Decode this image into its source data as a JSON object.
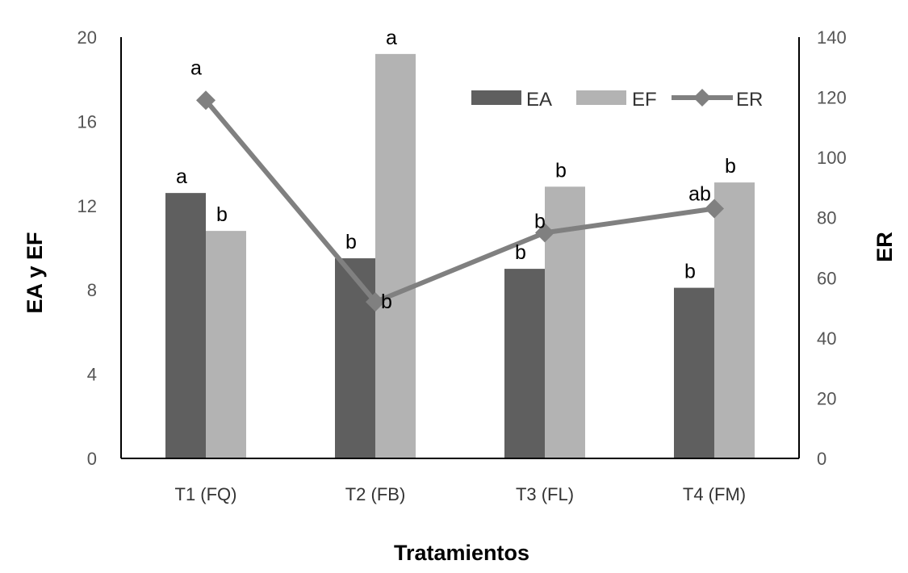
{
  "chart_data": {
    "type": "bar",
    "categories": [
      "T1 (FQ)",
      "T2 (FB)",
      "T3 (FL)",
      "T4 (FM)"
    ],
    "xlabel": "Tratamientos",
    "ylabel": "EA y EF",
    "y2label": "ER",
    "ylim": [
      0,
      20
    ],
    "y2lim": [
      0,
      140
    ],
    "yticks": [
      "0",
      "4",
      "8",
      "12",
      "16",
      "20"
    ],
    "y2ticks": [
      "0",
      "20",
      "40",
      "60",
      "80",
      "100",
      "120",
      "140"
    ],
    "grid": false,
    "legend_position": "top-right",
    "series": [
      {
        "name": "EA",
        "type": "bar",
        "axis": "left",
        "color": "#5f5f5f",
        "values": [
          12.6,
          9.5,
          9.0,
          8.1
        ],
        "labels": [
          "a",
          "b",
          "b",
          "b"
        ]
      },
      {
        "name": "EF",
        "type": "bar",
        "axis": "left",
        "color": "#b3b3b3",
        "values": [
          10.8,
          19.2,
          12.9,
          13.1
        ],
        "labels": [
          "b",
          "a",
          "b",
          "b"
        ]
      },
      {
        "name": "ER",
        "type": "line",
        "axis": "right",
        "color": "#808080",
        "marker": "diamond",
        "values": [
          119,
          52,
          75,
          83
        ],
        "labels": [
          "a",
          "b",
          "b",
          "ab"
        ]
      }
    ]
  }
}
